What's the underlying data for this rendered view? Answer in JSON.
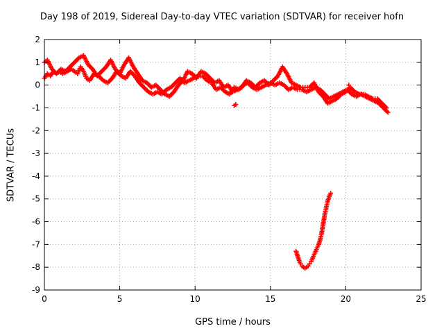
{
  "chart_data": {
    "type": "scatter",
    "title": "Day 198 of 2019, Sidereal Day-to-day VTEC variation (SDTVAR) for receiver hofn",
    "xlabel": "GPS time / hours",
    "ylabel": "SDTVAR / TECUs",
    "xlim": [
      0,
      25
    ],
    "ylim": [
      -9,
      2
    ],
    "xticks": [
      "0",
      "5",
      "10",
      "15",
      "20",
      "25"
    ],
    "yticks": [
      "2",
      "1",
      "0",
      "-1",
      "-2",
      "-3",
      "-4",
      "-5",
      "-6",
      "-7",
      "-8",
      "-9"
    ],
    "grid": true,
    "marker": "+",
    "color": "#ff0000",
    "series": [
      {
        "name": "main",
        "x": [
          0.0,
          0.2,
          0.4,
          0.6,
          0.8,
          1.0,
          1.2,
          1.5,
          1.8,
          2.0,
          2.2,
          2.4,
          2.6,
          2.8,
          3.0,
          3.3,
          3.6,
          3.9,
          4.2,
          4.5,
          4.8,
          5.1,
          5.4,
          5.7,
          6.0,
          6.3,
          6.6,
          6.9,
          7.2,
          7.5,
          7.8,
          8.1,
          8.4,
          8.7,
          9.0,
          9.3,
          9.6,
          9.9,
          10.2,
          10.5,
          10.8,
          11.1,
          11.4,
          11.7,
          12.0,
          12.3,
          12.6,
          12.9,
          13.2,
          13.5,
          13.8,
          14.1,
          14.4,
          14.7,
          15.0,
          15.3,
          15.6,
          15.9,
          16.2,
          16.5,
          16.8,
          17.1,
          17.4,
          17.7,
          18.0,
          18.3,
          18.6,
          18.9,
          19.2,
          19.5,
          19.8,
          20.1,
          20.4,
          20.7,
          21.0,
          21.3,
          21.6,
          21.9,
          22.2,
          22.5,
          22.8
        ],
        "y": [
          0.3,
          0.5,
          0.4,
          0.6,
          0.5,
          0.6,
          0.5,
          0.6,
          0.7,
          0.6,
          0.5,
          0.8,
          0.6,
          0.3,
          0.2,
          0.5,
          0.4,
          0.2,
          0.1,
          0.3,
          0.6,
          0.4,
          0.3,
          0.6,
          0.4,
          0.1,
          -0.1,
          -0.3,
          -0.4,
          -0.3,
          -0.4,
          -0.2,
          -0.1,
          0.1,
          0.3,
          0.1,
          0.2,
          0.3,
          0.4,
          0.4,
          0.2,
          0.1,
          -0.2,
          -0.1,
          -0.3,
          -0.4,
          -0.1,
          -0.2,
          0.0,
          0.1,
          -0.1,
          -0.2,
          -0.1,
          0.0,
          0.1,
          0.0,
          0.1,
          0.0,
          -0.2,
          -0.1,
          -0.2,
          -0.2,
          -0.3,
          -0.2,
          -0.1,
          -0.2,
          -0.4,
          -0.6,
          -0.5,
          -0.4,
          -0.3,
          -0.2,
          -0.4,
          -0.5,
          -0.4,
          -0.5,
          -0.6,
          -0.7,
          -0.8,
          -1.0,
          -1.2
        ]
      },
      {
        "name": "main-upper",
        "x": [
          0.0,
          0.2,
          0.5,
          0.8,
          1.1,
          1.4,
          1.7,
          2.0,
          2.3,
          2.6,
          2.9,
          3.2,
          3.5,
          3.8,
          4.1,
          4.4,
          4.7,
          5.0,
          5.3,
          5.6,
          5.9,
          6.2,
          6.5,
          6.8,
          7.1,
          7.4,
          7.7,
          8.0,
          8.3,
          8.6,
          8.9,
          9.2,
          9.5,
          9.8,
          10.1,
          10.4,
          10.7,
          11.0,
          11.3,
          11.6,
          11.9,
          12.2,
          12.5,
          12.8,
          13.1,
          13.4,
          13.7,
          14.0,
          14.3,
          14.6,
          14.9,
          15.2,
          15.5,
          15.8,
          16.1,
          16.4,
          16.7,
          17.0,
          17.3,
          17.6,
          17.9,
          18.2,
          18.5,
          18.8,
          19.1,
          19.4,
          19.7,
          20.0,
          20.3,
          20.6,
          20.9,
          21.2,
          21.5,
          21.8,
          22.1,
          22.4,
          22.7
        ],
        "y": [
          1.0,
          1.1,
          0.7,
          0.5,
          0.7,
          0.6,
          0.8,
          1.0,
          1.2,
          1.3,
          0.9,
          0.7,
          0.4,
          0.6,
          0.8,
          1.1,
          0.7,
          0.5,
          0.9,
          1.2,
          0.8,
          0.5,
          0.2,
          0.1,
          -0.1,
          0.0,
          -0.2,
          -0.4,
          -0.5,
          -0.3,
          0.0,
          0.2,
          0.6,
          0.5,
          0.3,
          0.6,
          0.5,
          0.3,
          0.1,
          0.2,
          -0.1,
          0.0,
          -0.3,
          -0.2,
          -0.1,
          0.2,
          0.1,
          -0.1,
          0.1,
          0.2,
          0.0,
          0.2,
          0.4,
          0.8,
          0.5,
          0.1,
          0.0,
          -0.1,
          -0.1,
          -0.1,
          0.1,
          -0.3,
          -0.5,
          -0.8,
          -0.7,
          -0.6,
          -0.4,
          -0.3,
          -0.1,
          -0.3,
          -0.4,
          -0.4,
          -0.5,
          -0.6,
          -0.6,
          -0.8,
          -1.0
        ]
      },
      {
        "name": "outliers",
        "x": [
          12.6,
          12.7,
          20.2
        ],
        "y": [
          -0.9,
          -0.85,
          0.0
        ]
      },
      {
        "name": "dip",
        "x": [
          16.7,
          16.8,
          16.9,
          17.0,
          17.1,
          17.2,
          17.3,
          17.4,
          17.5,
          17.6,
          17.7,
          17.8,
          17.9,
          18.0,
          18.1,
          18.2,
          18.3,
          18.4,
          18.5,
          18.6,
          18.7,
          18.8,
          18.9,
          19.0
        ],
        "y": [
          -7.3,
          -7.5,
          -7.7,
          -7.85,
          -7.95,
          -8.0,
          -8.05,
          -8.0,
          -7.95,
          -7.85,
          -7.75,
          -7.6,
          -7.45,
          -7.3,
          -7.15,
          -7.0,
          -6.8,
          -6.5,
          -6.1,
          -5.7,
          -5.4,
          -5.1,
          -4.9,
          -4.75
        ]
      }
    ]
  }
}
